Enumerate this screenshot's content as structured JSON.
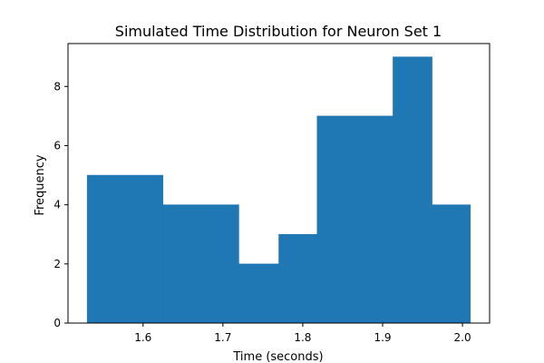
{
  "chart_data": {
    "type": "bar",
    "title": "Simulated Time Distribution for Neuron Set 1",
    "xlabel": "Time (seconds)",
    "ylabel": "Frequency",
    "bins": [
      {
        "x0": 1.53,
        "x1": 1.625,
        "value": 5
      },
      {
        "x0": 1.625,
        "x1": 1.72,
        "value": 4
      },
      {
        "x0": 1.72,
        "x1": 1.77,
        "value": 2
      },
      {
        "x0": 1.77,
        "x1": 1.818,
        "value": 3
      },
      {
        "x0": 1.818,
        "x1": 1.913,
        "value": 7
      },
      {
        "x0": 1.913,
        "x1": 1.962,
        "value": 9
      },
      {
        "x0": 1.962,
        "x1": 2.01,
        "value": 4
      }
    ],
    "xlim": [
      1.506,
      2.034
    ],
    "ylim": [
      0,
      9.45
    ],
    "xticks": [
      "1.6",
      "1.7",
      "1.8",
      "1.9",
      "2.0"
    ],
    "yticks": [
      "0",
      "2",
      "4",
      "6",
      "8"
    ],
    "bar_color": "#1f77b4",
    "grid": false
  }
}
